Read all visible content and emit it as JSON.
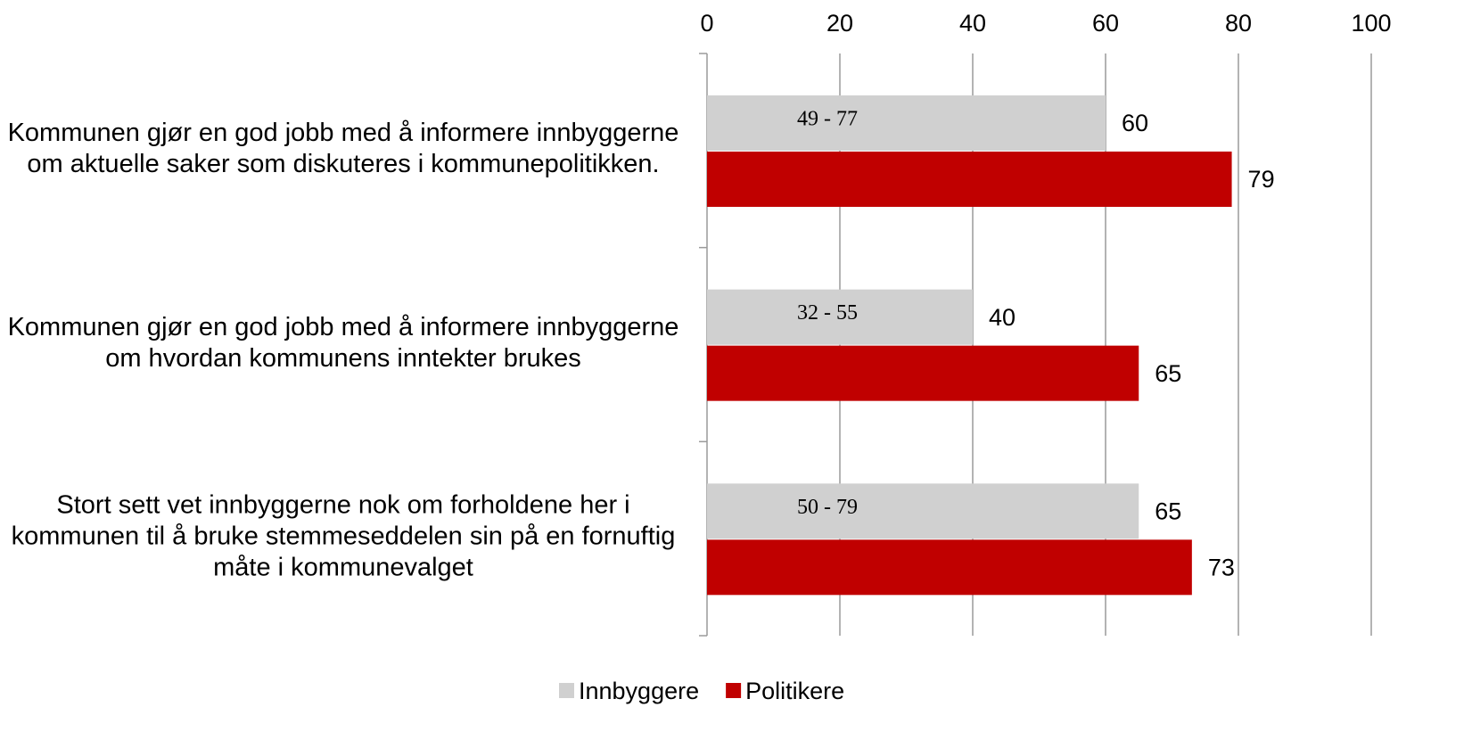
{
  "chart_data": {
    "type": "bar",
    "orientation": "horizontal",
    "categories": [
      "Kommunen gjør en god jobb med å informere innbyggerne om aktuelle saker som diskuteres i kommunepolitikken.",
      "Kommunen gjør en god jobb med å informere innbyggerne om  hvordan kommunens inntekter brukes",
      "Stort sett vet innbyggerne nok om forholdene her i kommunen til å bruke stemmeseddelen sin på en fornuftig måte i kommunevalget"
    ],
    "series": [
      {
        "name": "Innbyggere",
        "color": "#d0d0d0",
        "values": [
          60,
          40,
          65
        ],
        "annotations": [
          "49 - 77",
          "32 - 55",
          "50 - 79"
        ]
      },
      {
        "name": "Politikere",
        "color": "#c00000",
        "values": [
          79,
          65,
          73
        ]
      }
    ],
    "xlim": [
      0,
      100
    ],
    "xticks": [
      0,
      20,
      40,
      60,
      80,
      100
    ],
    "grid": true,
    "legend": "bottom"
  }
}
